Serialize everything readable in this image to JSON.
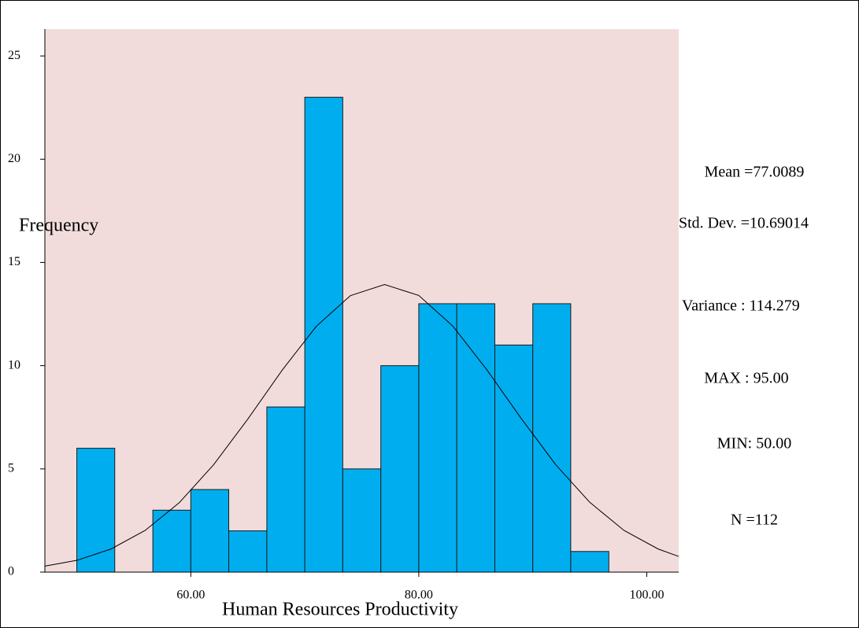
{
  "chart_data": {
    "type": "histogram",
    "xlabel": "Human Resources Productivity",
    "ylabel": "Frequency",
    "bins": [
      50,
      53.33,
      56.67,
      60,
      63.33,
      66.67,
      70,
      73.33,
      76.67,
      80,
      83.33,
      86.67,
      90,
      93.33,
      96.67
    ],
    "values": [
      6,
      0,
      3,
      4,
      2,
      8,
      23,
      5,
      10,
      13,
      13,
      11,
      13,
      1
    ],
    "color": "#00aeef",
    "background": "#f2dcdb",
    "xlim": [
      47.2,
      102.8
    ],
    "ylim": [
      0,
      26.3
    ],
    "xticks": [
      {
        "value": 60,
        "label": "60.00"
      },
      {
        "value": 80,
        "label": "80.00"
      },
      {
        "value": 100,
        "label": "100.00"
      }
    ],
    "yticks": [
      0,
      5,
      10,
      15,
      20,
      25
    ],
    "curve": {
      "x": [
        47.2,
        50,
        53,
        56,
        59,
        62,
        65,
        68,
        71,
        74,
        77,
        80,
        83,
        86,
        89,
        92,
        95,
        98,
        101,
        102.8
      ],
      "values": [
        0.29,
        0.57,
        1.12,
        2.02,
        3.37,
        5.2,
        7.41,
        9.77,
        11.9,
        13.39,
        13.93,
        13.4,
        11.91,
        9.78,
        7.43,
        5.21,
        3.38,
        2.02,
        1.12,
        0.76
      ]
    },
    "annotations": [
      "Mean =77.0089",
      "Std. Dev. =10.69014",
      "Variance : 114.279",
      "MAX : 95.00",
      "MIN: 50.00",
      "N =112"
    ]
  }
}
